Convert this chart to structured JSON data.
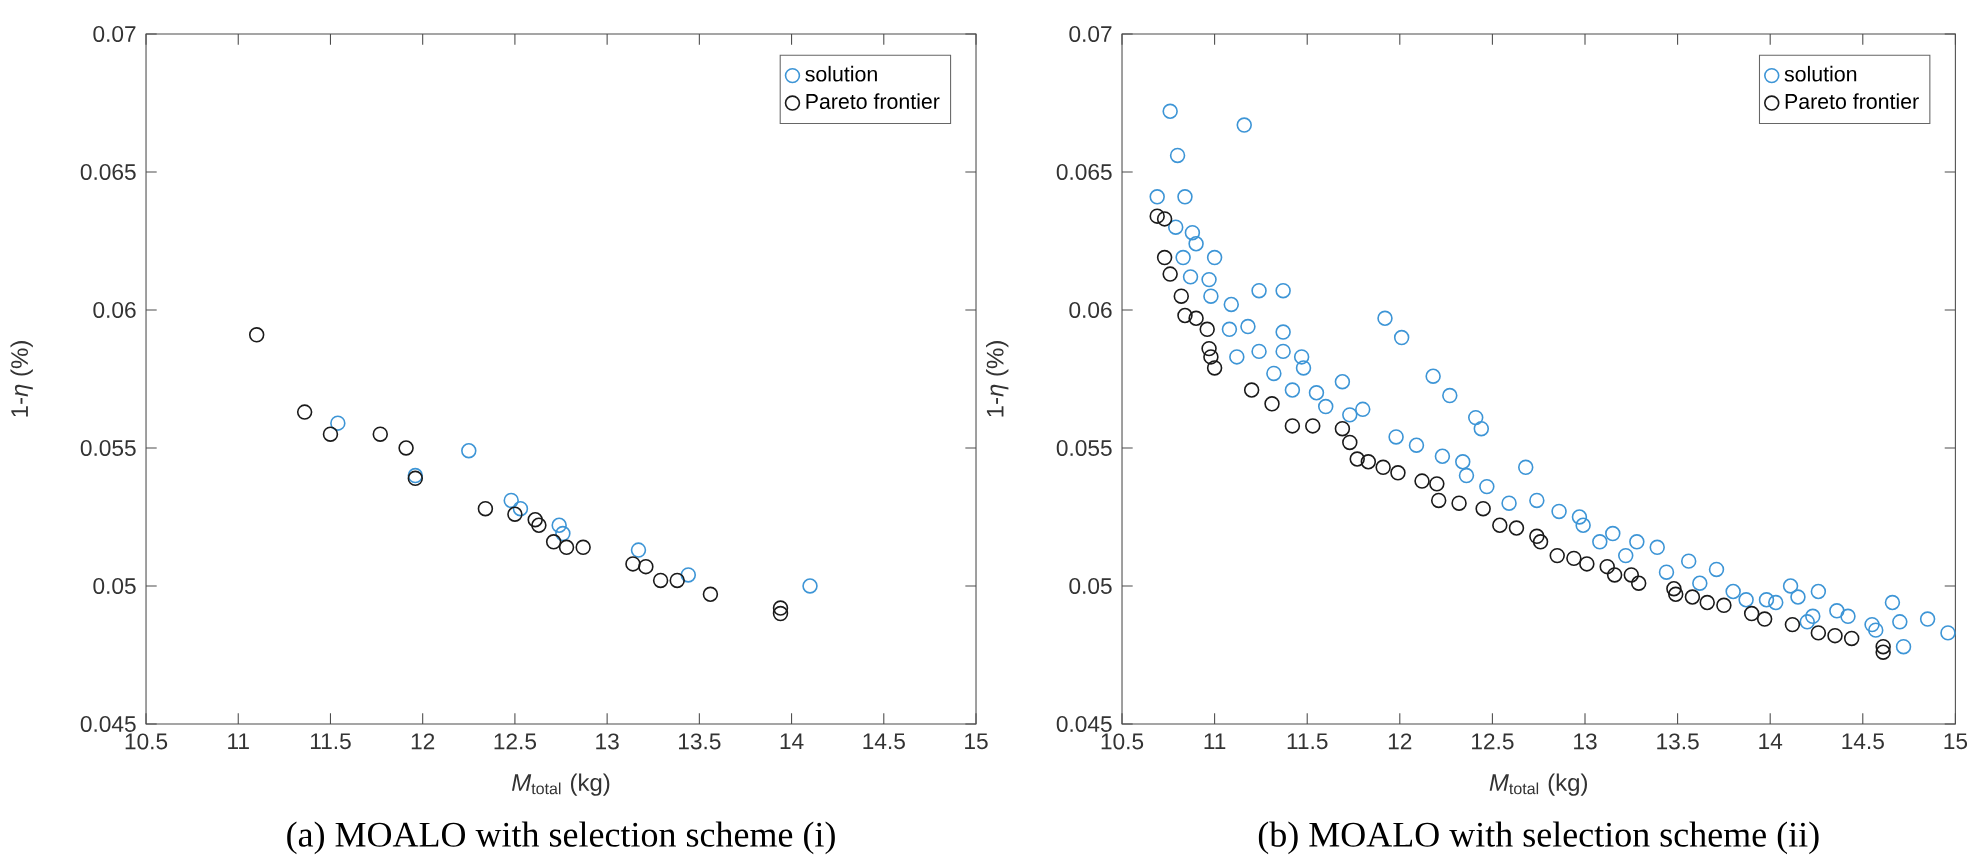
{
  "chart_data": [
    {
      "type": "scatter",
      "title": "(a) MOALO with selection scheme (i)",
      "xlabel": "*M*$_{total}$ (kg)",
      "ylabel": "1-*η* (%)",
      "xlim": [
        10.5,
        15
      ],
      "ylim": [
        0.045,
        0.07
      ],
      "xticks": [
        10.5,
        11,
        11.5,
        12,
        12.5,
        13,
        13.5,
        14,
        14.5,
        15
      ],
      "yticks": [
        0.045,
        0.05,
        0.055,
        0.06,
        0.065,
        0.07
      ],
      "marker": "circle",
      "legend": "top right",
      "series": [
        {
          "name": "solution",
          "color": "#3d95d6",
          "x": [
            11.54,
            12.25,
            11.96,
            12.48,
            12.53,
            12.74,
            12.76,
            13.17,
            13.44,
            14.1
          ],
          "values": [
            0.0559,
            0.0549,
            0.054,
            0.0531,
            0.0528,
            0.0522,
            0.0519,
            0.0513,
            0.0504,
            0.05
          ]
        },
        {
          "name": "Pareto frontier",
          "color": "#1a1a1a",
          "x": [
            11.1,
            11.36,
            11.5,
            11.77,
            11.91,
            11.96,
            12.34,
            12.5,
            12.61,
            12.63,
            12.71,
            12.78,
            12.87,
            13.14,
            13.21,
            13.29,
            13.38,
            13.56,
            13.94,
            13.94
          ],
          "values": [
            0.0591,
            0.0563,
            0.0555,
            0.0555,
            0.055,
            0.0539,
            0.0528,
            0.0526,
            0.0524,
            0.0522,
            0.0516,
            0.0514,
            0.0514,
            0.0508,
            0.0507,
            0.0502,
            0.0502,
            0.0497,
            0.0492,
            0.049
          ]
        }
      ]
    },
    {
      "type": "scatter",
      "title": "(b) MOALO with selection scheme (ii)",
      "xlabel": "*M*$_{total}$ (kg)",
      "ylabel": "1-*η* (%)",
      "xlim": [
        10.5,
        15
      ],
      "ylim": [
        0.045,
        0.07
      ],
      "xticks": [
        10.5,
        11,
        11.5,
        12,
        12.5,
        13,
        13.5,
        14,
        14.5,
        15
      ],
      "yticks": [
        0.045,
        0.05,
        0.055,
        0.06,
        0.065,
        0.07
      ],
      "marker": "circle",
      "legend": "top right",
      "series": [
        {
          "name": "solution",
          "color": "#3d95d6",
          "x": [
            10.76,
            11.16,
            10.8,
            10.69,
            10.84,
            10.79,
            10.88,
            10.9,
            11.0,
            10.83,
            10.87,
            10.97,
            10.98,
            11.09,
            11.24,
            11.37,
            11.08,
            11.18,
            11.37,
            11.12,
            11.24,
            11.37,
            11.47,
            11.92,
            12.01,
            11.32,
            11.48,
            11.42,
            11.55,
            11.69,
            11.6,
            11.8,
            12.18,
            12.27,
            12.41,
            12.44,
            11.73,
            11.98,
            12.09,
            12.68,
            12.34,
            12.86,
            12.74,
            12.59,
            12.36,
            12.47,
            12.23,
            12.99,
            13.08,
            13.28,
            13.39,
            13.56,
            13.71,
            13.22,
            13.44,
            13.87,
            14.03,
            14.11,
            14.15,
            14.26,
            14.2,
            14.36,
            14.42,
            14.55,
            14.66,
            14.7,
            14.72,
            14.85,
            14.96,
            14.57,
            14.23,
            13.62,
            13.8,
            13.98,
            12.97,
            13.15
          ],
          "values": [
            0.0672,
            0.0667,
            0.0656,
            0.0641,
            0.0641,
            0.063,
            0.0628,
            0.0624,
            0.0619,
            0.0619,
            0.0612,
            0.0611,
            0.0605,
            0.0602,
            0.0607,
            0.0607,
            0.0593,
            0.0594,
            0.0592,
            0.0583,
            0.0585,
            0.0585,
            0.0583,
            0.0597,
            0.059,
            0.0577,
            0.0579,
            0.0571,
            0.057,
            0.0574,
            0.0565,
            0.0564,
            0.0576,
            0.0569,
            0.0561,
            0.0557,
            0.0562,
            0.0554,
            0.0551,
            0.0543,
            0.0545,
            0.0527,
            0.0531,
            0.053,
            0.054,
            0.0536,
            0.0547,
            0.0522,
            0.0516,
            0.0516,
            0.0514,
            0.0509,
            0.0506,
            0.0511,
            0.0505,
            0.0495,
            0.0494,
            0.05,
            0.0496,
            0.0498,
            0.0487,
            0.0491,
            0.0489,
            0.0486,
            0.0494,
            0.0487,
            0.0478,
            0.0488,
            0.0483,
            0.0484,
            0.0489,
            0.0501,
            0.0498,
            0.0495,
            0.0525,
            0.0519
          ]
        },
        {
          "name": "Pareto frontier",
          "color": "#1a1a1a",
          "x": [
            10.69,
            10.73,
            10.73,
            10.76,
            10.82,
            10.84,
            10.9,
            10.96,
            10.97,
            10.98,
            11.0,
            11.2,
            11.31,
            11.42,
            11.53,
            11.69,
            11.73,
            11.77,
            11.83,
            11.91,
            11.99,
            12.12,
            12.2,
            12.21,
            12.32,
            12.45,
            12.54,
            12.63,
            12.74,
            12.76,
            12.85,
            12.94,
            13.01,
            13.12,
            13.16,
            13.25,
            13.29,
            13.48,
            13.49,
            13.58,
            13.66,
            13.75,
            13.9,
            13.97,
            14.12,
            14.26,
            14.35,
            14.44,
            14.61,
            14.61
          ],
          "values": [
            0.0634,
            0.0633,
            0.0619,
            0.0613,
            0.0605,
            0.0598,
            0.0597,
            0.0593,
            0.0586,
            0.0583,
            0.0579,
            0.0571,
            0.0566,
            0.0558,
            0.0558,
            0.0557,
            0.0552,
            0.0546,
            0.0545,
            0.0543,
            0.0541,
            0.0538,
            0.0537,
            0.0531,
            0.053,
            0.0528,
            0.0522,
            0.0521,
            0.0518,
            0.0516,
            0.0511,
            0.051,
            0.0508,
            0.0507,
            0.0504,
            0.0504,
            0.0501,
            0.0499,
            0.0497,
            0.0496,
            0.0494,
            0.0493,
            0.049,
            0.0488,
            0.0486,
            0.0483,
            0.0482,
            0.0481,
            0.0478,
            0.0476
          ]
        }
      ]
    }
  ]
}
